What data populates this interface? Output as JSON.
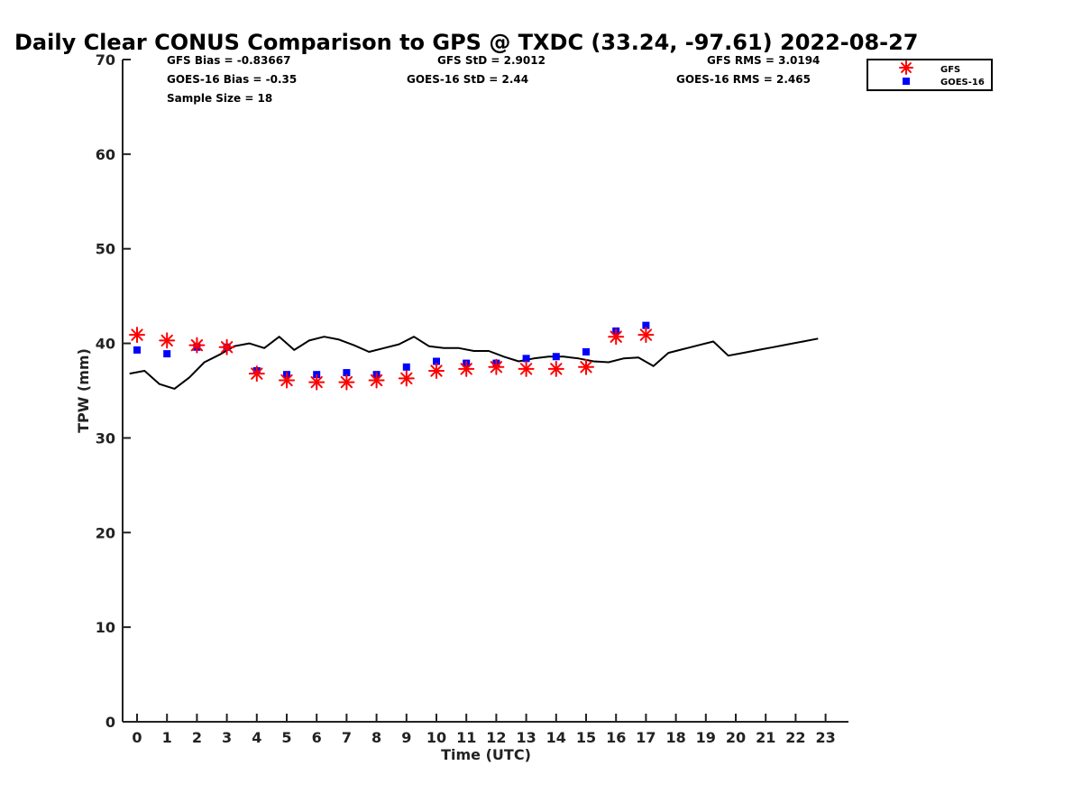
{
  "chart_data": {
    "type": "scatter",
    "title": "Daily Clear CONUS Comparison to GPS @ TXDC (33.24, -97.61) 2022-08-27",
    "xlabel": "Time (UTC)",
    "ylabel": "TPW (mm)",
    "xlim": [
      -0.5,
      23.7
    ],
    "ylim": [
      0,
      70
    ],
    "xticks": [
      0,
      1,
      2,
      3,
      4,
      5,
      6,
      7,
      8,
      9,
      10,
      11,
      12,
      13,
      14,
      15,
      16,
      17,
      18,
      19,
      20,
      21,
      22,
      23
    ],
    "yticks": [
      0,
      10,
      20,
      30,
      40,
      50,
      60,
      70
    ],
    "grid": false,
    "legend_position": "top-right, outside plot",
    "stats": {
      "gfs_bias": "GFS Bias = -0.83667",
      "goes_bias": "GOES-16 Bias = -0.35",
      "sample_size": "Sample Size = 18",
      "gfs_std": "GFS StD = 2.9012",
      "goes_std": "GOES-16 StD = 2.44",
      "gfs_rms": "GFS RMS = 3.0194",
      "goes_rms": "GOES-16 RMS = 2.465"
    },
    "series": [
      {
        "name": "GFS",
        "marker": "asterisk",
        "color": "#ff0000",
        "x": [
          0,
          1,
          2,
          3,
          4,
          5,
          6,
          7,
          8,
          9,
          10,
          11,
          12,
          13,
          14,
          15,
          16,
          17
        ],
        "y": [
          40.9,
          40.3,
          39.8,
          39.6,
          36.8,
          36.1,
          35.9,
          35.9,
          36.1,
          36.3,
          37.1,
          37.3,
          37.5,
          37.3,
          37.3,
          37.5,
          40.7,
          40.9
        ]
      },
      {
        "name": "GOES-16",
        "marker": "square",
        "color": "#0000ff",
        "x": [
          0,
          1,
          2,
          3,
          4,
          5,
          6,
          7,
          8,
          9,
          10,
          11,
          12,
          13,
          14,
          15,
          16,
          17
        ],
        "y": [
          39.3,
          38.9,
          39.6,
          39.6,
          37.1,
          36.7,
          36.7,
          36.9,
          36.7,
          37.5,
          38.1,
          37.9,
          37.9,
          38.4,
          38.6,
          39.1,
          41.3,
          41.9
        ]
      },
      {
        "name": "",
        "marker": "line",
        "color": "#000000",
        "x": [
          -0.25,
          0.25,
          0.75,
          1.25,
          1.75,
          2.25,
          2.75,
          3.25,
          3.75,
          4.25,
          4.75,
          5.25,
          5.75,
          6.25,
          6.75,
          7.25,
          7.75,
          8.25,
          8.75,
          9.25,
          9.75,
          10.25,
          10.75,
          11.25,
          11.75,
          12.25,
          12.75,
          13.25,
          13.75,
          14.25,
          14.75,
          15.25,
          15.75,
          16.25,
          16.75,
          17.25,
          17.75,
          18.25,
          18.75,
          19.25,
          19.75,
          20.25,
          20.75,
          21.25,
          21.75,
          22.25,
          22.75
        ],
        "y": [
          36.8,
          37.1,
          35.7,
          35.2,
          36.4,
          38.0,
          38.8,
          39.7,
          40.0,
          39.5,
          40.7,
          39.3,
          40.3,
          40.7,
          40.4,
          39.8,
          39.1,
          39.5,
          39.9,
          40.7,
          39.7,
          39.5,
          39.5,
          39.2,
          39.2,
          38.6,
          38.1,
          38.4,
          38.6,
          38.6,
          38.4,
          38.1,
          38.0,
          38.4,
          38.5,
          37.6,
          39.0,
          39.4,
          39.8,
          40.2,
          38.7,
          39.0,
          39.3,
          39.6,
          39.9,
          40.2,
          40.5
        ]
      }
    ]
  }
}
